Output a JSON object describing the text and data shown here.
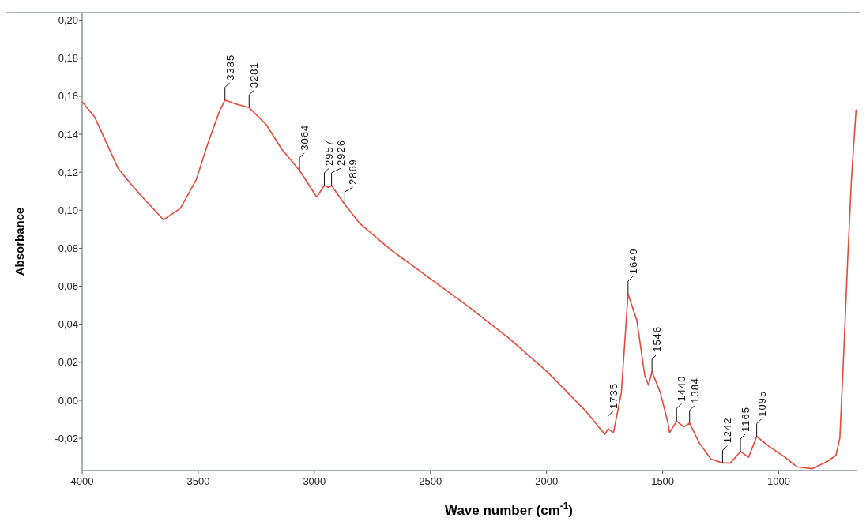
{
  "chart_data": {
    "type": "line",
    "xlabel": "Wave number (cm$^{-1}$)",
    "ylabel": "Absorbance",
    "xlim": [
      4000,
      665
    ],
    "ylim": [
      -0.037,
      0.204
    ],
    "xticks": [
      4000,
      3500,
      3000,
      2500,
      2000,
      1500,
      1000
    ],
    "yticks": [
      {
        "value": -0.02,
        "label": "-0,02"
      },
      {
        "value": 0,
        "label": "0,00"
      },
      {
        "value": 0.02,
        "label": "0,02"
      },
      {
        "value": 0.04,
        "label": "0,04"
      },
      {
        "value": 0.06,
        "label": "0,06"
      },
      {
        "value": 0.08,
        "label": "0,08"
      },
      {
        "value": 0.1,
        "label": "0,10"
      },
      {
        "value": 0.12,
        "label": "0,12"
      },
      {
        "value": 0.14,
        "label": "0,14"
      },
      {
        "value": 0.16,
        "label": "0,16"
      },
      {
        "value": 0.18,
        "label": "0,18"
      },
      {
        "value": 0.2,
        "label": "0,20"
      }
    ],
    "marker": "none",
    "line_style": "solid",
    "series": [
      {
        "color": "#e8473a",
        "x": [
          4000,
          3946,
          3845,
          3778,
          3711,
          3650,
          3577,
          3509,
          3459,
          3409,
          3385,
          3341,
          3281,
          3207,
          3140,
          3064,
          2990,
          2957,
          2938,
          2926,
          2869,
          2804,
          2669,
          2501,
          2333,
          2165,
          1997,
          1829,
          1762,
          1749,
          1735,
          1712,
          1678,
          1649,
          1611,
          1577,
          1561,
          1546,
          1510,
          1477,
          1470,
          1440,
          1409,
          1384,
          1342,
          1292,
          1242,
          1208,
          1165,
          1130,
          1095,
          1040,
          973,
          922,
          855,
          788,
          754,
          737,
          720,
          703,
          687,
          667
        ],
        "values": [
          0.157,
          0.149,
          0.122,
          0.112,
          0.103,
          0.095,
          0.101,
          0.116,
          0.135,
          0.152,
          0.158,
          0.156,
          0.154,
          0.145,
          0.132,
          0.121,
          0.107,
          0.113,
          0.112,
          0.113,
          0.103,
          0.093,
          0.079,
          0.064,
          0.049,
          0.033,
          0.015,
          -0.006,
          -0.016,
          -0.018,
          -0.015,
          -0.017,
          0.004,
          0.056,
          0.042,
          0.013,
          0.008,
          0.015,
          0.004,
          -0.012,
          -0.017,
          -0.011,
          -0.014,
          -0.012,
          -0.0225,
          -0.031,
          -0.033,
          -0.033,
          -0.027,
          -0.03,
          -0.019,
          -0.0245,
          -0.03,
          -0.035,
          -0.036,
          -0.032,
          -0.029,
          -0.02,
          0.025,
          0.0745,
          0.116,
          0.153
        ]
      }
    ],
    "annotations": [
      {
        "text": "3385",
        "x": 3385,
        "y": 0.158
      },
      {
        "text": "3281",
        "x": 3281,
        "y": 0.154
      },
      {
        "text": "3064",
        "x": 3064,
        "y": 0.121
      },
      {
        "text": "2957",
        "x": 2957,
        "y": 0.113
      },
      {
        "text": "2926",
        "x": 2926,
        "y": 0.113
      },
      {
        "text": "2869",
        "x": 2869,
        "y": 0.103
      },
      {
        "text": "1735",
        "x": 1735,
        "y": -0.015
      },
      {
        "text": "1649",
        "x": 1649,
        "y": 0.056
      },
      {
        "text": "1546",
        "x": 1546,
        "y": 0.015
      },
      {
        "text": "1440",
        "x": 1440,
        "y": -0.011
      },
      {
        "text": "1384",
        "x": 1384,
        "y": -0.012
      },
      {
        "text": "1242",
        "x": 1242,
        "y": -0.033
      },
      {
        "text": "1165",
        "x": 1165,
        "y": -0.027
      },
      {
        "text": "1095",
        "x": 1095,
        "y": -0.019
      }
    ]
  }
}
